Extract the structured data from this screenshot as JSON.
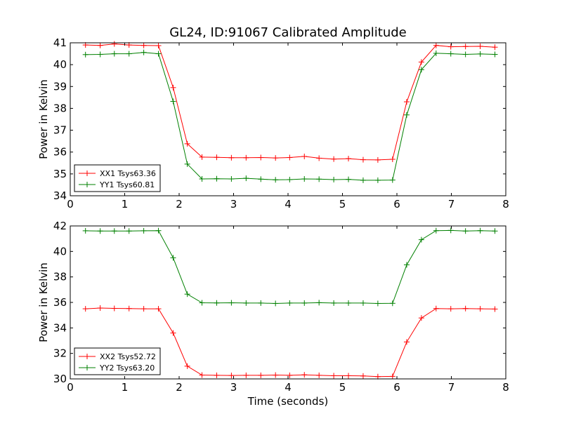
{
  "figure": {
    "title": "GL24, ID:91067 Calibrated Amplitude"
  },
  "chart_data": [
    {
      "type": "line",
      "title": "GL24, ID:91067 Calibrated Amplitude",
      "xlabel": "",
      "ylabel": "Power in Kelvin",
      "xlim": [
        0,
        8
      ],
      "ylim": [
        34,
        41
      ],
      "xticks": [
        "0",
        "1",
        "2",
        "3",
        "4",
        "5",
        "6",
        "7",
        "8"
      ],
      "yticks": [
        "34",
        "35",
        "36",
        "37",
        "38",
        "39",
        "40",
        "41"
      ],
      "grid": false,
      "legend_position": "lower-left",
      "x": [
        0.28,
        0.55,
        0.81,
        1.08,
        1.35,
        1.62,
        1.89,
        2.15,
        2.42,
        2.69,
        2.96,
        3.23,
        3.5,
        3.77,
        4.03,
        4.3,
        4.57,
        4.84,
        5.11,
        5.38,
        5.65,
        5.92,
        6.18,
        6.45,
        6.72,
        6.99,
        7.26,
        7.53,
        7.8
      ],
      "series": [
        {
          "name": "XX1 Tsys63.36",
          "color": "#ff0000",
          "values": [
            40.9,
            40.88,
            40.95,
            40.9,
            40.88,
            40.87,
            38.95,
            36.38,
            35.77,
            35.76,
            35.74,
            35.74,
            35.75,
            35.73,
            35.75,
            35.8,
            35.72,
            35.68,
            35.7,
            35.65,
            35.64,
            35.67,
            38.3,
            40.12,
            40.88,
            40.82,
            40.83,
            40.84,
            40.8
          ]
        },
        {
          "name": "YY1 Tsys60.81",
          "color": "#008000",
          "values": [
            40.46,
            40.47,
            40.5,
            40.5,
            40.56,
            40.5,
            38.32,
            35.45,
            34.77,
            34.78,
            34.77,
            34.8,
            34.76,
            34.73,
            34.74,
            34.77,
            34.76,
            34.74,
            34.75,
            34.71,
            34.71,
            34.72,
            37.7,
            39.77,
            40.52,
            40.5,
            40.47,
            40.49,
            40.47
          ]
        }
      ]
    },
    {
      "type": "line",
      "title": "",
      "xlabel": "Time (seconds)",
      "ylabel": "Power in Kelvin",
      "xlim": [
        0,
        8
      ],
      "ylim": [
        30,
        42
      ],
      "xticks": [
        "0",
        "1",
        "2",
        "3",
        "4",
        "5",
        "6",
        "7",
        "8"
      ],
      "yticks": [
        "30",
        "32",
        "34",
        "36",
        "38",
        "40",
        "42"
      ],
      "grid": false,
      "legend_position": "lower-left",
      "x": [
        0.28,
        0.55,
        0.81,
        1.08,
        1.35,
        1.62,
        1.89,
        2.15,
        2.42,
        2.69,
        2.96,
        3.23,
        3.5,
        3.77,
        4.03,
        4.3,
        4.57,
        4.84,
        5.11,
        5.38,
        5.65,
        5.92,
        6.18,
        6.45,
        6.72,
        6.99,
        7.26,
        7.53,
        7.8
      ],
      "series": [
        {
          "name": "XX2 Tsys52.72",
          "color": "#ff0000",
          "values": [
            35.5,
            35.56,
            35.53,
            35.52,
            35.5,
            35.5,
            33.6,
            31.0,
            30.3,
            30.28,
            30.27,
            30.28,
            30.28,
            30.3,
            30.28,
            30.32,
            30.28,
            30.25,
            30.25,
            30.23,
            30.18,
            30.2,
            32.9,
            34.78,
            35.52,
            35.5,
            35.52,
            35.5,
            35.48
          ]
        },
        {
          "name": "YY2 Tsys63.20",
          "color": "#008000",
          "values": [
            41.62,
            41.6,
            41.6,
            41.6,
            41.62,
            41.63,
            39.5,
            36.65,
            35.97,
            35.96,
            35.97,
            35.95,
            35.95,
            35.92,
            35.95,
            35.95,
            35.98,
            35.95,
            35.95,
            35.95,
            35.92,
            35.93,
            38.95,
            40.92,
            41.63,
            41.65,
            41.6,
            41.63,
            41.6
          ]
        }
      ]
    }
  ]
}
